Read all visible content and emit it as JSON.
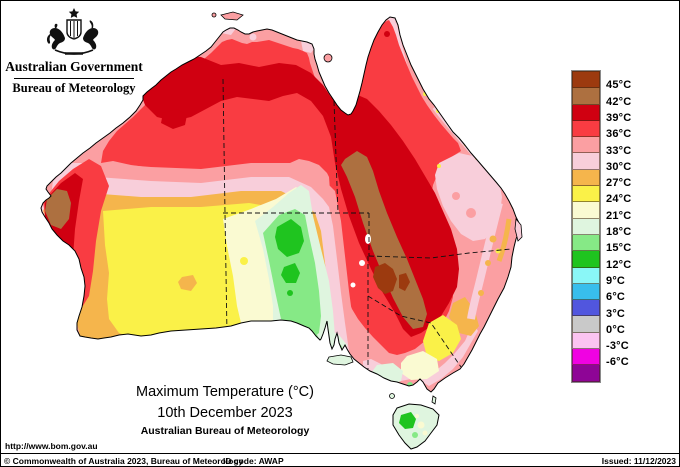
{
  "header": {
    "government": "Australian Government",
    "bureau": "Bureau of Meteorology"
  },
  "title": {
    "line1": "Maximum Temperature (°C)",
    "line2": "10th December 2023",
    "line3": "Australian Bureau of Meteorology"
  },
  "footer": {
    "url": "http://www.bom.gov.au",
    "copyright": "© Commonwealth of Australia 2023, Bureau of Meteorology",
    "id_code": "ID code: AWAP",
    "issued": "Issued: 11/12/2023"
  },
  "legend": {
    "bands": [
      {
        "label": "45°C",
        "color": "#9C3A0F"
      },
      {
        "label": "42°C",
        "color": "#AD7040"
      },
      {
        "label": "39°C",
        "color": "#D00011"
      },
      {
        "label": "36°C",
        "color": "#F93C42"
      },
      {
        "label": "33°C",
        "color": "#FB9FA2"
      },
      {
        "label": "30°C",
        "color": "#F8CEDA"
      },
      {
        "label": "27°C",
        "color": "#F5B54C"
      },
      {
        "label": "24°C",
        "color": "#FAF148"
      },
      {
        "label": "21°C",
        "color": "#FAFAD2"
      },
      {
        "label": "18°C",
        "color": "#DFF5DF"
      },
      {
        "label": "15°C",
        "color": "#86E986"
      },
      {
        "label": "12°C",
        "color": "#1FC41F"
      },
      {
        "label": "9°C",
        "color": "#8AF7F7"
      },
      {
        "label": "6°C",
        "color": "#38BEEC"
      },
      {
        "label": "3°C",
        "color": "#5156DE"
      },
      {
        "label": "0°C",
        "color": "#C9C9C9"
      },
      {
        "label": "-3°C",
        "color": "#FBC4F1"
      },
      {
        "label": "-6°C",
        "color": "#F002E2"
      },
      {
        "label": null,
        "color": "#8E0596"
      }
    ]
  },
  "map": {
    "palette": {
      "t45plus": "#9C3A0F",
      "t42": "#AD7040",
      "t39": "#D00011",
      "t36": "#F93C42",
      "t33": "#FB9FA2",
      "t30": "#F8CEDA",
      "t27": "#F5B54C",
      "t24": "#FAF148",
      "t21": "#FAFAD2",
      "t18": "#DFF5DF",
      "t15": "#86E986",
      "t12": "#1FC41F",
      "lake": "#FFFFFF",
      "outline": "#000000"
    }
  }
}
